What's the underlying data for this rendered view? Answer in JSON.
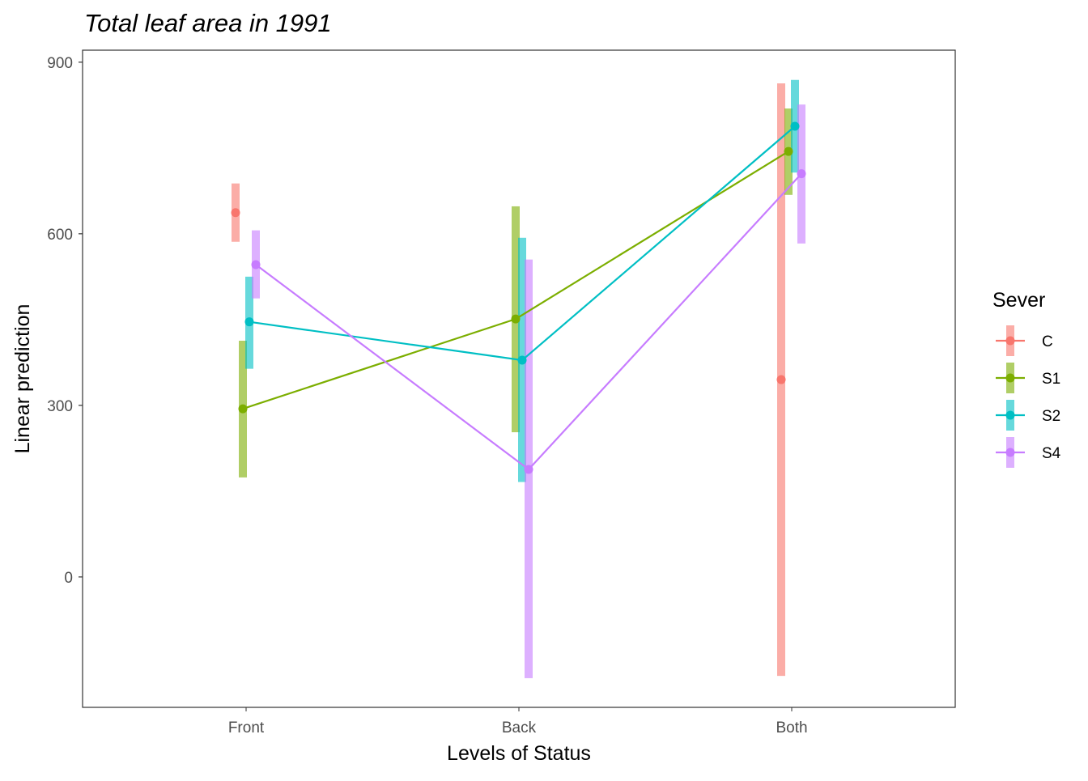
{
  "chart_data": {
    "type": "line",
    "title": "Total leaf area in 1991",
    "xlabel": "Levels of Status",
    "ylabel": "Linear prediction",
    "categories": [
      "Front",
      "Back",
      "Both"
    ],
    "yticks": [
      "900",
      "600",
      "300",
      "0"
    ],
    "ylim": [
      -228,
      921
    ],
    "grid": false,
    "legend": {
      "title": "Sever",
      "position": "right"
    },
    "series": [
      {
        "name": "C",
        "color": "#F8766D",
        "values": [
          637,
          null,
          345
        ],
        "lower": [
          586,
          null,
          -173
        ],
        "upper": [
          688,
          null,
          863
        ]
      },
      {
        "name": "S1",
        "color": "#7CAE00",
        "values": [
          294,
          451,
          744
        ],
        "lower": [
          174,
          253,
          668
        ],
        "upper": [
          413,
          648,
          819
        ]
      },
      {
        "name": "S2",
        "color": "#00BFC4",
        "values": [
          446,
          379,
          788
        ],
        "lower": [
          364,
          166,
          707
        ],
        "upper": [
          525,
          593,
          869
        ]
      },
      {
        "name": "S4",
        "color": "#C77CFF",
        "values": [
          546,
          188,
          705
        ],
        "lower": [
          487,
          -177,
          583
        ],
        "upper": [
          606,
          555,
          826
        ]
      }
    ]
  }
}
